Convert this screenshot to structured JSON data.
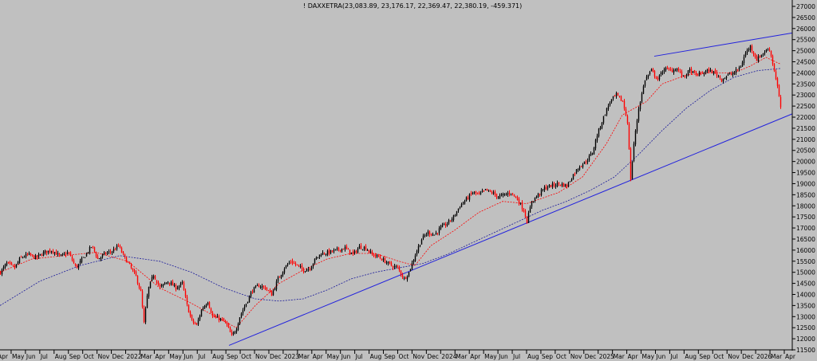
{
  "chart_data": {
    "type": "candlestick",
    "title": "! DAXXETRA(23,083.89, 23,176.17, 22,369.47, 22,380.19, -459.371)",
    "ylim": [
      11500,
      27000
    ],
    "y_ticks": [
      "11500",
      "12000",
      "12500",
      "13000",
      "13500",
      "14000",
      "14500",
      "15000",
      "15500",
      "16000",
      "16500",
      "17000",
      "17500",
      "18000",
      "18500",
      "19000",
      "19500",
      "20000",
      "20500",
      "21000",
      "21500",
      "22000",
      "22500",
      "23000",
      "23500",
      "24000",
      "24500",
      "25000",
      "25500",
      "26000",
      "26500",
      "27000"
    ],
    "x_ticks": [
      "Apr",
      "May",
      "Jun",
      "Jul",
      "Aug",
      "Sep",
      "Oct",
      "Nov",
      "Dec",
      "2022",
      "Mar",
      "Apr",
      "May",
      "Jun",
      "Jul",
      "Aug",
      "Sep",
      "Oct",
      "Nov",
      "Dec",
      "2023",
      "Mar",
      "Apr",
      "May",
      "Jun",
      "Jul",
      "Aug",
      "Sep",
      "Oct",
      "Nov",
      "Dec",
      "2024",
      "Mar",
      "Apr",
      "May",
      "Jun",
      "Jul",
      "Aug",
      "Sep",
      "Oct",
      "Nov",
      "Dec",
      "2025",
      "Mar",
      "Apr",
      "May",
      "Jun",
      "Jul",
      "Aug",
      "Sep",
      "Oct",
      "Nov",
      "Dec",
      "2026",
      "Mar",
      "Apr"
    ],
    "price_path": [
      [
        0,
        15000
      ],
      [
        8,
        15400
      ],
      [
        18,
        15200
      ],
      [
        25,
        15650
      ],
      [
        35,
        15800
      ],
      [
        45,
        15650
      ],
      [
        55,
        15900
      ],
      [
        65,
        16000
      ],
      [
        75,
        15700
      ],
      [
        85,
        15900
      ],
      [
        95,
        15200
      ],
      [
        105,
        15700
      ],
      [
        115,
        16200
      ],
      [
        122,
        15600
      ],
      [
        132,
        15850
      ],
      [
        140,
        15950
      ],
      [
        148,
        16200
      ],
      [
        155,
        15700
      ],
      [
        162,
        15300
      ],
      [
        170,
        14800
      ],
      [
        176,
        14100
      ],
      [
        180,
        12700
      ],
      [
        185,
        14200
      ],
      [
        192,
        14900
      ],
      [
        200,
        14300
      ],
      [
        210,
        14600
      ],
      [
        220,
        14300
      ],
      [
        228,
        14500
      ],
      [
        234,
        13500
      ],
      [
        240,
        12800
      ],
      [
        246,
        12600
      ],
      [
        252,
        13300
      ],
      [
        260,
        13700
      ],
      [
        266,
        13000
      ],
      [
        275,
        12900
      ],
      [
        283,
        12700
      ],
      [
        290,
        12100
      ],
      [
        296,
        12500
      ],
      [
        300,
        13000
      ],
      [
        308,
        13600
      ],
      [
        316,
        14200
      ],
      [
        324,
        14400
      ],
      [
        332,
        14300
      ],
      [
        340,
        14000
      ],
      [
        348,
        14700
      ],
      [
        356,
        15200
      ],
      [
        364,
        15500
      ],
      [
        372,
        15300
      ],
      [
        380,
        15100
      ],
      [
        388,
        15200
      ],
      [
        395,
        15600
      ],
      [
        402,
        15850
      ],
      [
        412,
        15900
      ],
      [
        422,
        16000
      ],
      [
        432,
        16100
      ],
      [
        442,
        15800
      ],
      [
        450,
        16150
      ],
      [
        458,
        16100
      ],
      [
        466,
        15800
      ],
      [
        474,
        15700
      ],
      [
        482,
        15500
      ],
      [
        490,
        15300
      ],
      [
        498,
        15200
      ],
      [
        506,
        14700
      ],
      [
        512,
        15000
      ],
      [
        520,
        15800
      ],
      [
        528,
        16500
      ],
      [
        536,
        16800
      ],
      [
        544,
        16700
      ],
      [
        552,
        17000
      ],
      [
        560,
        17200
      ],
      [
        568,
        17500
      ],
      [
        576,
        18000
      ],
      [
        584,
        18300
      ],
      [
        592,
        18600
      ],
      [
        600,
        18500
      ],
      [
        608,
        18700
      ],
      [
        616,
        18600
      ],
      [
        624,
        18400
      ],
      [
        632,
        18500
      ],
      [
        640,
        18600
      ],
      [
        648,
        18300
      ],
      [
        656,
        17800
      ],
      [
        660,
        17300
      ],
      [
        666,
        18200
      ],
      [
        674,
        18500
      ],
      [
        682,
        18800
      ],
      [
        690,
        18900
      ],
      [
        700,
        19000
      ],
      [
        710,
        18900
      ],
      [
        718,
        19400
      ],
      [
        726,
        19800
      ],
      [
        734,
        20000
      ],
      [
        742,
        20400
      ],
      [
        748,
        21200
      ],
      [
        756,
        22000
      ],
      [
        764,
        22700
      ],
      [
        772,
        23000
      ],
      [
        780,
        22700
      ],
      [
        786,
        21800
      ],
      [
        790,
        19200
      ],
      [
        794,
        20800
      ],
      [
        800,
        22400
      ],
      [
        808,
        23700
      ],
      [
        816,
        24100
      ],
      [
        824,
        23700
      ],
      [
        832,
        24200
      ],
      [
        840,
        24100
      ],
      [
        848,
        24200
      ],
      [
        856,
        23800
      ],
      [
        864,
        24100
      ],
      [
        872,
        23900
      ],
      [
        880,
        24000
      ],
      [
        888,
        24100
      ],
      [
        896,
        24000
      ],
      [
        904,
        23700
      ],
      [
        912,
        23900
      ],
      [
        920,
        24000
      ],
      [
        928,
        24300
      ],
      [
        934,
        24900
      ],
      [
        940,
        25200
      ],
      [
        948,
        24600
      ],
      [
        956,
        24900
      ],
      [
        964,
        25100
      ],
      [
        970,
        24100
      ],
      [
        974,
        23400
      ],
      [
        978,
        22380
      ]
    ],
    "ma_short_path": [
      [
        0,
        15000
      ],
      [
        40,
        15600
      ],
      [
        80,
        15750
      ],
      [
        120,
        15900
      ],
      [
        160,
        15500
      ],
      [
        200,
        14300
      ],
      [
        240,
        13600
      ],
      [
        270,
        13000
      ],
      [
        296,
        12500
      ],
      [
        320,
        13500
      ],
      [
        350,
        14500
      ],
      [
        380,
        15100
      ],
      [
        410,
        15600
      ],
      [
        440,
        15850
      ],
      [
        470,
        15850
      ],
      [
        500,
        15500
      ],
      [
        520,
        15300
      ],
      [
        540,
        16200
      ],
      [
        570,
        16900
      ],
      [
        600,
        17700
      ],
      [
        630,
        18200
      ],
      [
        660,
        18100
      ],
      [
        700,
        18600
      ],
      [
        730,
        19300
      ],
      [
        760,
        20800
      ],
      [
        780,
        22100
      ],
      [
        790,
        22300
      ],
      [
        810,
        22700
      ],
      [
        830,
        23500
      ],
      [
        860,
        23900
      ],
      [
        890,
        24000
      ],
      [
        920,
        24000
      ],
      [
        940,
        24300
      ],
      [
        960,
        24700
      ],
      [
        978,
        24400
      ]
    ],
    "ma_long_path": [
      [
        0,
        13500
      ],
      [
        50,
        14600
      ],
      [
        100,
        15300
      ],
      [
        150,
        15750
      ],
      [
        200,
        15500
      ],
      [
        240,
        15000
      ],
      [
        280,
        14300
      ],
      [
        320,
        13800
      ],
      [
        350,
        13700
      ],
      [
        380,
        13800
      ],
      [
        410,
        14200
      ],
      [
        440,
        14700
      ],
      [
        470,
        15000
      ],
      [
        500,
        15200
      ],
      [
        530,
        15400
      ],
      [
        560,
        15800
      ],
      [
        590,
        16300
      ],
      [
        620,
        16800
      ],
      [
        650,
        17300
      ],
      [
        680,
        17800
      ],
      [
        710,
        18200
      ],
      [
        740,
        18700
      ],
      [
        770,
        19300
      ],
      [
        800,
        20300
      ],
      [
        830,
        21400
      ],
      [
        860,
        22400
      ],
      [
        890,
        23200
      ],
      [
        920,
        23800
      ],
      [
        950,
        24100
      ],
      [
        978,
        24200
      ]
    ],
    "trend_lines": [
      {
        "from": [
          287,
          11700
        ],
        "to": [
          993,
          22150
        ]
      },
      {
        "from": [
          820,
          24750
        ],
        "to": [
          993,
          25800
        ]
      }
    ],
    "colors": {
      "background": "#c0c0c0",
      "up": "#000000",
      "down": "#ff0000",
      "ma_short": "#ff0000",
      "ma_long": "#1a1a9a",
      "trend": "#2222dd"
    }
  }
}
